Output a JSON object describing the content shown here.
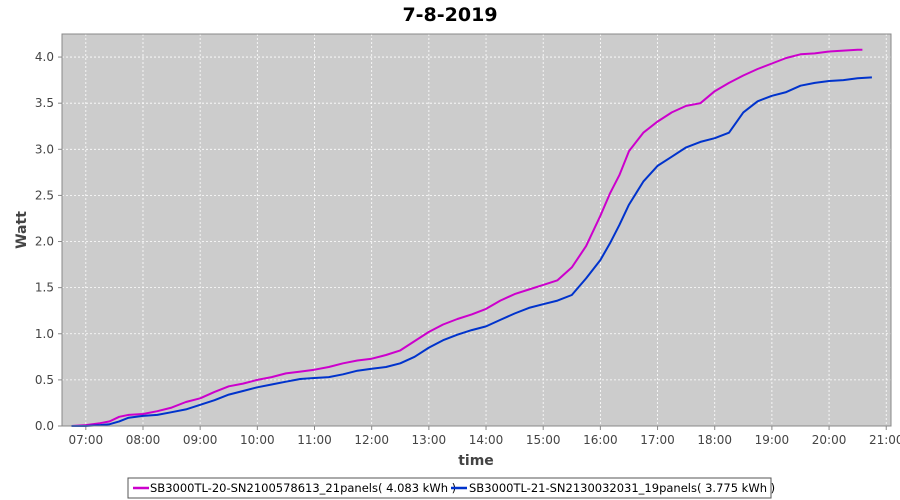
{
  "chart_data": {
    "type": "line",
    "title": "7-8-2019",
    "xlabel": "time",
    "ylabel": "Watt",
    "xlim": [
      "06:35",
      "21:05"
    ],
    "ylim": [
      0,
      4.25
    ],
    "grid": true,
    "legend_position": "bottom",
    "background_color": "#cccccc",
    "x_ticks": [
      "07:00",
      "08:00",
      "09:00",
      "10:00",
      "11:00",
      "12:00",
      "13:00",
      "14:00",
      "15:00",
      "16:00",
      "17:00",
      "18:00",
      "19:00",
      "20:00",
      "21:00"
    ],
    "y_ticks": [
      "0.0",
      "0.5",
      "1.0",
      "1.5",
      "2.0",
      "2.5",
      "3.0",
      "3.5",
      "4.0"
    ],
    "series": [
      {
        "name": "SB3000TL-20-SN2100578613_21panels( 4.083 kWh )",
        "color": "#cc00cc",
        "x": [
          "06:45",
          "07:00",
          "07:15",
          "07:25",
          "07:35",
          "07:45",
          "08:00",
          "08:15",
          "08:30",
          "08:45",
          "09:00",
          "09:15",
          "09:30",
          "09:45",
          "10:00",
          "10:15",
          "10:30",
          "10:45",
          "11:00",
          "11:15",
          "11:30",
          "11:45",
          "12:00",
          "12:15",
          "12:30",
          "12:45",
          "13:00",
          "13:15",
          "13:30",
          "13:45",
          "14:00",
          "14:15",
          "14:30",
          "14:45",
          "15:00",
          "15:15",
          "15:30",
          "15:45",
          "16:00",
          "16:10",
          "16:20",
          "16:30",
          "16:45",
          "17:00",
          "17:15",
          "17:30",
          "17:45",
          "18:00",
          "18:15",
          "18:30",
          "18:45",
          "19:00",
          "19:15",
          "19:30",
          "19:45",
          "20:00",
          "20:15",
          "20:30",
          "20:35"
        ],
        "y": [
          0.0,
          0.01,
          0.03,
          0.05,
          0.1,
          0.12,
          0.13,
          0.16,
          0.2,
          0.26,
          0.3,
          0.37,
          0.43,
          0.46,
          0.5,
          0.53,
          0.57,
          0.59,
          0.61,
          0.64,
          0.68,
          0.71,
          0.73,
          0.77,
          0.82,
          0.92,
          1.02,
          1.1,
          1.16,
          1.21,
          1.27,
          1.36,
          1.43,
          1.48,
          1.53,
          1.58,
          1.72,
          1.95,
          2.28,
          2.52,
          2.72,
          2.98,
          3.18,
          3.3,
          3.4,
          3.47,
          3.5,
          3.63,
          3.72,
          3.8,
          3.87,
          3.93,
          3.99,
          4.03,
          4.04,
          4.06,
          4.07,
          4.08,
          4.08
        ]
      },
      {
        "name": "SB3000TL-21-SN2130032031_19panels( 3.775 kWh )",
        "color": "#0033cc",
        "x": [
          "06:45",
          "07:00",
          "07:15",
          "07:25",
          "07:35",
          "07:45",
          "08:00",
          "08:15",
          "08:30",
          "08:45",
          "09:00",
          "09:15",
          "09:30",
          "09:45",
          "10:00",
          "10:15",
          "10:30",
          "10:45",
          "11:00",
          "11:15",
          "11:30",
          "11:45",
          "12:00",
          "12:15",
          "12:30",
          "12:45",
          "13:00",
          "13:15",
          "13:30",
          "13:45",
          "14:00",
          "14:15",
          "14:30",
          "14:45",
          "15:00",
          "15:15",
          "15:30",
          "15:45",
          "16:00",
          "16:10",
          "16:20",
          "16:30",
          "16:45",
          "17:00",
          "17:15",
          "17:30",
          "17:45",
          "18:00",
          "18:15",
          "18:30",
          "18:45",
          "19:00",
          "19:15",
          "19:30",
          "19:45",
          "20:00",
          "20:15",
          "20:30",
          "20:45"
        ],
        "y": [
          0.0,
          0.0,
          0.01,
          0.02,
          0.05,
          0.09,
          0.11,
          0.12,
          0.15,
          0.18,
          0.23,
          0.28,
          0.34,
          0.38,
          0.42,
          0.45,
          0.48,
          0.51,
          0.52,
          0.53,
          0.56,
          0.6,
          0.62,
          0.64,
          0.68,
          0.75,
          0.85,
          0.93,
          0.99,
          1.04,
          1.08,
          1.15,
          1.22,
          1.28,
          1.32,
          1.36,
          1.42,
          1.6,
          1.8,
          1.98,
          2.18,
          2.4,
          2.65,
          2.82,
          2.92,
          3.02,
          3.08,
          3.12,
          3.18,
          3.4,
          3.52,
          3.58,
          3.62,
          3.69,
          3.72,
          3.74,
          3.75,
          3.77,
          3.78
        ]
      }
    ]
  }
}
